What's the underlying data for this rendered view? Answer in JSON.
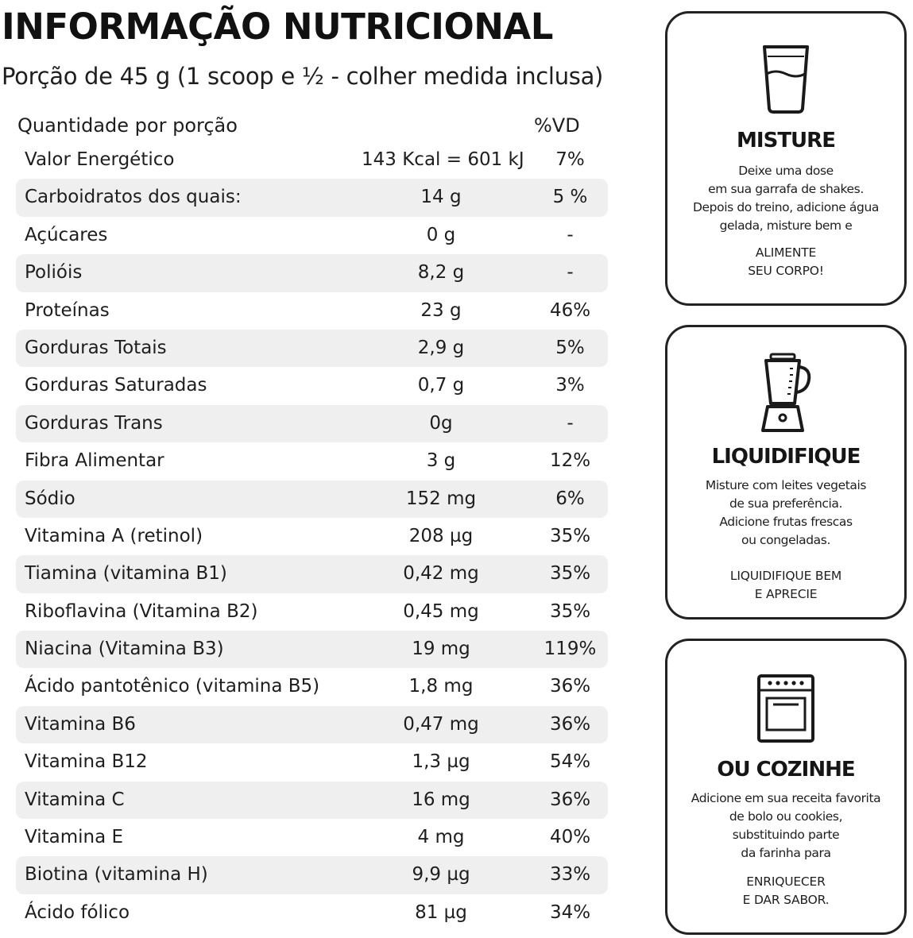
{
  "header": {
    "title": "INFORMAÇÃO NUTRICIONAL",
    "subtitle": "Porção de 45 g (1 scoop e ½ - colher medida inclusa)"
  },
  "table": {
    "col_quantity": "Quantidade por porção",
    "col_vd": "%VD",
    "rows": [
      {
        "name": "Valor Energético",
        "amount": "143 Kcal = 601 kJ",
        "vd": "7%"
      },
      {
        "name": "Carboidratos dos quais:",
        "amount": "14 g",
        "vd": "5 %"
      },
      {
        "name": "Açúcares",
        "amount": "0 g",
        "vd": "-"
      },
      {
        "name": "Polióis",
        "amount": "8,2 g",
        "vd": "-"
      },
      {
        "name": "Proteínas",
        "amount": "23 g",
        "vd": "46%"
      },
      {
        "name": "Gorduras Totais",
        "amount": "2,9 g",
        "vd": "5%"
      },
      {
        "name": "Gorduras Saturadas",
        "amount": "0,7 g",
        "vd": "3%"
      },
      {
        "name": "Gorduras Trans",
        "amount": "0g",
        "vd": "-"
      },
      {
        "name": "Fibra Alimentar",
        "amount": "3 g",
        "vd": "12%"
      },
      {
        "name": "Sódio",
        "amount": "152 mg",
        "vd": "6%"
      },
      {
        "name": "Vitamina A (retinol)",
        "amount": "208 µg",
        "vd": "35%"
      },
      {
        "name": "Tiamina (vitamina B1)",
        "amount": "0,42 mg",
        "vd": "35%"
      },
      {
        "name": "Riboflavina (Vitamina B2)",
        "amount": "0,45 mg",
        "vd": "35%"
      },
      {
        "name": "Niacina (Vitamina B3)",
        "amount": "19 mg",
        "vd": "119%"
      },
      {
        "name": "Ácido pantotênico (vitamina B5)",
        "amount": "1,8 mg",
        "vd": "36%"
      },
      {
        "name": "Vitamina B6",
        "amount": "0,47 mg",
        "vd": "36%"
      },
      {
        "name": "Vitamina B12",
        "amount": "1,3 µg",
        "vd": "54%"
      },
      {
        "name": "Vitamina C",
        "amount": "16 mg",
        "vd": "36%"
      },
      {
        "name": "Vitamina E",
        "amount": "4 mg",
        "vd": "40%"
      },
      {
        "name": "Biotina (vitamina H)",
        "amount": "9,9 µg",
        "vd": "33%"
      },
      {
        "name": "Ácido fólico",
        "amount": "81 µg",
        "vd": "34%"
      }
    ]
  },
  "cards": [
    {
      "icon": "glass-icon",
      "title": "MISTURE",
      "text": [
        "Deixe uma dose",
        "em sua garrafa de shakes.",
        "Depois do treino, adicione água",
        "gelada, misture bem e"
      ],
      "call": [
        "ALIMENTE",
        "SEU CORPO!"
      ]
    },
    {
      "icon": "blender-icon",
      "title": "LIQUIDIFIQUE",
      "text": [
        "Misture com leites vegetais",
        "de sua preferência.",
        "Adicione frutas frescas",
        "ou congeladas."
      ],
      "call": [
        "LIQUIDIFIQUE BEM",
        "E APRECIE"
      ]
    },
    {
      "icon": "oven-icon",
      "title": "OU COZINHE",
      "text": [
        "Adicione em sua receita favorita",
        "de bolo ou cookies,",
        "substituindo parte",
        "da farinha para"
      ],
      "call": [
        "ENRIQUECER",
        "E DAR SABOR."
      ]
    }
  ]
}
